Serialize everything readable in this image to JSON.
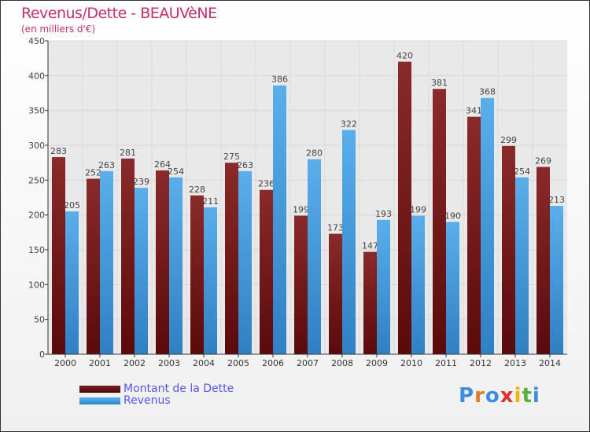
{
  "chart_data": {
    "type": "bar",
    "title": "Revenus/Dette - BEAUVèNE",
    "subtitle": "(en milliers d'€)",
    "categories": [
      "2000",
      "2001",
      "2002",
      "2003",
      "2004",
      "2005",
      "2006",
      "2007",
      "2008",
      "2009",
      "2010",
      "2011",
      "2012",
      "2013",
      "2014"
    ],
    "series": [
      {
        "name": "Montant de la Dette",
        "color": "#7a1e1e",
        "values": [
          283,
          252,
          281,
          264,
          228,
          275,
          236,
          199,
          173,
          147,
          420,
          381,
          341,
          299,
          269
        ]
      },
      {
        "name": "Revenus",
        "color": "#4aa3e3",
        "values": [
          205,
          263,
          239,
          254,
          211,
          263,
          386,
          280,
          322,
          193,
          199,
          190,
          368,
          254,
          213
        ]
      }
    ],
    "ylim": [
      0,
      450
    ],
    "yticks": [
      0,
      50,
      100,
      150,
      200,
      250,
      300,
      350,
      400,
      450
    ],
    "grid": true,
    "legend": "bottom-left"
  },
  "logo": "Proxiti"
}
